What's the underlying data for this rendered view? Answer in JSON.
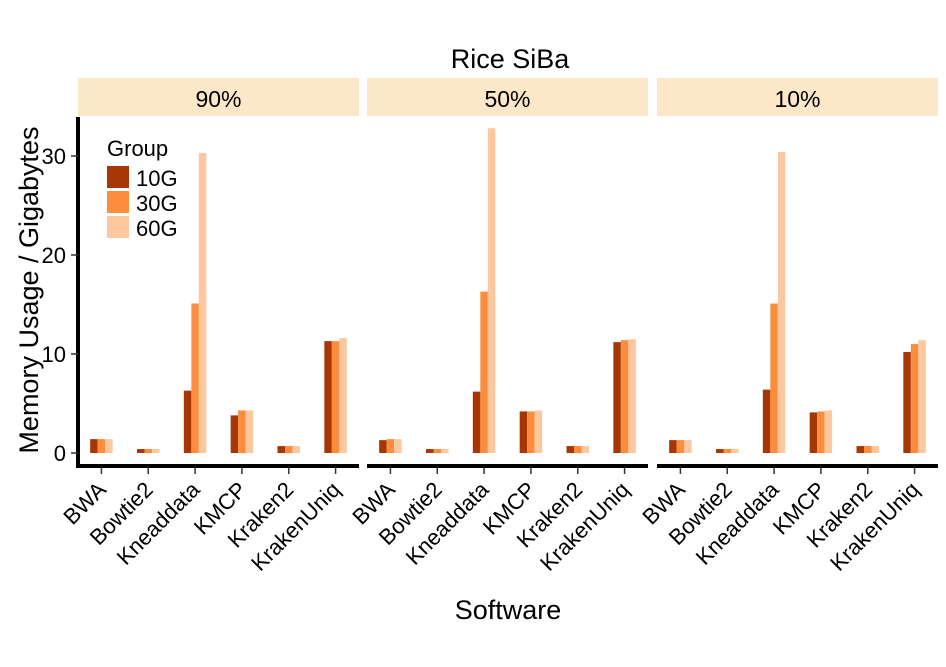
{
  "chart_data": {
    "type": "bar",
    "title": "Rice SiBa",
    "xlabel": "Software",
    "ylabel": "Memory Usage / Gigabytes",
    "ylim": [
      0,
      34
    ],
    "yticks": [
      "0",
      "10",
      "20",
      "30"
    ],
    "grid": false,
    "legend": {
      "title": "Group",
      "position": "top-left",
      "entries": [
        "10G",
        "30G",
        "60G"
      ]
    },
    "categories": [
      "BWA",
      "Bowtie2",
      "Kneaddata",
      "KMCP",
      "Kraken2",
      "KrakenUniq"
    ],
    "colors": [
      "#A63603",
      "#FD8D3C",
      "#FDC8A0"
    ],
    "strip_color": "#FDE7C9",
    "facets": [
      {
        "label": "90%",
        "series": [
          {
            "name": "10G",
            "values": [
              1.4,
              0.4,
              6.3,
              3.8,
              0.7,
              11.3
            ]
          },
          {
            "name": "30G",
            "values": [
              1.4,
              0.4,
              15.1,
              4.3,
              0.7,
              11.3
            ]
          },
          {
            "name": "60G",
            "values": [
              1.4,
              0.4,
              30.3,
              4.3,
              0.7,
              11.6
            ]
          }
        ]
      },
      {
        "label": "50%",
        "series": [
          {
            "name": "10G",
            "values": [
              1.3,
              0.4,
              6.2,
              4.2,
              0.7,
              11.2
            ]
          },
          {
            "name": "30G",
            "values": [
              1.4,
              0.4,
              16.3,
              4.2,
              0.7,
              11.4
            ]
          },
          {
            "name": "60G",
            "values": [
              1.4,
              0.4,
              32.8,
              4.3,
              0.7,
              11.5
            ]
          }
        ]
      },
      {
        "label": "10%",
        "series": [
          {
            "name": "10G",
            "values": [
              1.3,
              0.4,
              6.4,
              4.1,
              0.7,
              10.2
            ]
          },
          {
            "name": "30G",
            "values": [
              1.3,
              0.4,
              15.1,
              4.2,
              0.7,
              11.0
            ]
          },
          {
            "name": "60G",
            "values": [
              1.3,
              0.4,
              30.4,
              4.3,
              0.7,
              11.4
            ]
          }
        ]
      }
    ]
  }
}
